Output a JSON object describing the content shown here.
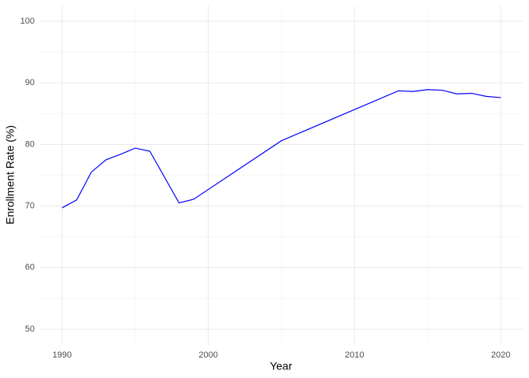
{
  "chart_data": {
    "type": "line",
    "x_label": "Year",
    "y_label": "Enrollment Rate (%)",
    "x": [
      1990,
      1991,
      1992,
      1993,
      1994,
      1995,
      1996,
      1998,
      1999,
      2005,
      2013,
      2014,
      2015,
      2016,
      2017,
      2018,
      2019,
      2020
    ],
    "series": [
      {
        "color": "#0000ff",
        "values": [
          69.7,
          71.0,
          75.5,
          77.5,
          78.4,
          79.4,
          78.9,
          70.5,
          71.1,
          80.6,
          88.7,
          88.6,
          88.9,
          88.8,
          88.2,
          88.3,
          87.8,
          87.6
        ]
      }
    ],
    "xlim": [
      1988.5,
      2021.5
    ],
    "ylim": [
      47.5,
      102.5
    ],
    "xticks": [
      1990,
      2000,
      2010,
      2020
    ],
    "yticks": [
      50,
      60,
      70,
      80,
      90,
      100
    ],
    "minor_xticks": [
      1995,
      2005,
      2015
    ],
    "minor_yticks": [
      55,
      65,
      75,
      85,
      95
    ],
    "grid": true
  }
}
